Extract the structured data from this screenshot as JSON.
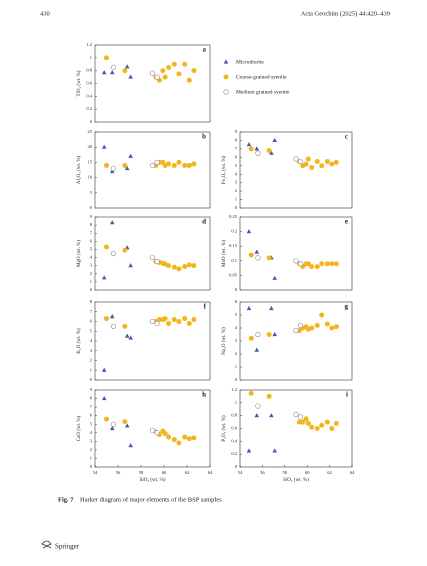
{
  "header": {
    "page": "430",
    "journal": "Acta Geochim (2025) 44:420–439"
  },
  "chart_data": [
    {
      "type": "scatter",
      "panel": "a",
      "ylabel": "TiO₂ (wt. %)",
      "xlim": [
        54,
        64
      ],
      "ylim": [
        0,
        1.2
      ],
      "yticks": [
        0,
        0.2,
        0.4,
        0.6,
        0.8,
        1,
        1.2
      ],
      "series": [
        {
          "name": "Microdiorite",
          "color": "#3f5fa8",
          "marker": "triangle",
          "x": [
            54.8,
            55.5,
            56.8,
            57.1
          ],
          "values": [
            0.77,
            0.77,
            0.86,
            0.7
          ]
        },
        {
          "name": "Coarse-grained syenite",
          "color": "#f2b51c",
          "marker": "circle",
          "x": [
            55,
            56.6,
            59.3,
            59.6,
            59.9,
            60.1,
            60.4,
            60.9,
            61.3,
            61.8,
            62.2,
            62.6
          ],
          "values": [
            1.0,
            0.8,
            0.7,
            0.65,
            0.8,
            0.7,
            0.85,
            0.9,
            0.75,
            0.9,
            0.65,
            0.8
          ]
        },
        {
          "name": "Medium grained syenite",
          "color": "#8a8a8a",
          "marker": "open-circle",
          "x": [
            55.6,
            59.0,
            59.4
          ],
          "values": [
            0.85,
            0.76,
            0.7
          ]
        }
      ]
    },
    {
      "type": "scatter",
      "panel": "b",
      "ylabel": "Al₂O₃ (wt. %)",
      "xlim": [
        54,
        64
      ],
      "ylim": [
        0,
        25
      ],
      "yticks": [
        0,
        5,
        10,
        15,
        20,
        25
      ],
      "series": [
        {
          "color": "#3f5fa8",
          "marker": "triangle",
          "x": [
            54.8,
            55.5,
            56.8,
            57.1
          ],
          "values": [
            20,
            12,
            13,
            17
          ]
        },
        {
          "color": "#f2b51c",
          "marker": "circle",
          "x": [
            55,
            56.6,
            59.3,
            59.6,
            59.9,
            60.1,
            60.4,
            60.9,
            61.3,
            61.8,
            62.2,
            62.6
          ],
          "values": [
            14,
            14,
            14,
            15,
            15,
            14,
            14.5,
            14,
            15,
            14,
            14,
            14.5
          ]
        },
        {
          "color": "#8a8a8a",
          "marker": "open-circle",
          "x": [
            55.6,
            59.0,
            59.4
          ],
          "values": [
            13,
            14,
            15
          ]
        }
      ]
    },
    {
      "type": "scatter",
      "panel": "c",
      "ylabel": "Fe₂O₃ (wt. %)",
      "xlim": [
        54,
        64
      ],
      "ylim": [
        0,
        9
      ],
      "yticks": [
        0,
        1,
        2,
        3,
        4,
        5,
        6,
        7,
        8,
        9
      ],
      "series": [
        {
          "color": "#3f5fa8",
          "marker": "triangle",
          "x": [
            54.8,
            55.5,
            56.8,
            57.1
          ],
          "values": [
            7.5,
            7,
            6.5,
            8
          ]
        },
        {
          "color": "#f2b51c",
          "marker": "circle",
          "x": [
            55,
            56.6,
            59.3,
            59.6,
            59.9,
            60.1,
            60.4,
            60.9,
            61.3,
            61.8,
            62.2,
            62.6
          ],
          "values": [
            7,
            6.8,
            5.5,
            5,
            5.2,
            5.8,
            4.8,
            5.5,
            5,
            5.5,
            5.2,
            5.4
          ]
        },
        {
          "color": "#8a8a8a",
          "marker": "open-circle",
          "x": [
            55.6,
            59.0,
            59.4
          ],
          "values": [
            6.5,
            5.8,
            5.5
          ]
        }
      ]
    },
    {
      "type": "scatter",
      "panel": "d",
      "ylabel": "MgO (wt. %)",
      "xlim": [
        54,
        64
      ],
      "ylim": [
        0,
        9
      ],
      "yticks": [
        0,
        1,
        2,
        3,
        4,
        5,
        6,
        7,
        8,
        9
      ],
      "series": [
        {
          "color": "#3f5fa8",
          "marker": "triangle",
          "x": [
            54.8,
            55.5,
            56.8,
            57.1
          ],
          "values": [
            1.5,
            8.3,
            5.2,
            3
          ]
        },
        {
          "color": "#f2b51c",
          "marker": "circle",
          "x": [
            55,
            56.6,
            59.3,
            59.6,
            59.9,
            60.1,
            60.4,
            60.9,
            61.3,
            61.8,
            62.2,
            62.6
          ],
          "values": [
            5.3,
            4.9,
            3.5,
            3.4,
            3.3,
            3.2,
            3.0,
            2.8,
            2.6,
            2.9,
            3.1,
            3.0
          ]
        },
        {
          "color": "#8a8a8a",
          "marker": "open-circle",
          "x": [
            55.6,
            59.0,
            59.4
          ],
          "values": [
            4.5,
            4,
            3.5
          ]
        }
      ]
    },
    {
      "type": "scatter",
      "panel": "e",
      "ylabel": "MnO (wt. %)",
      "xlim": [
        54,
        64
      ],
      "ylim": [
        0,
        0.25
      ],
      "yticks": [
        0,
        0.05,
        0.1,
        0.15,
        0.2,
        0.25
      ],
      "series": [
        {
          "color": "#3f5fa8",
          "marker": "triangle",
          "x": [
            54.8,
            55.5,
            56.8,
            57.1
          ],
          "values": [
            0.2,
            0.13,
            0.11,
            0.04
          ]
        },
        {
          "color": "#f2b51c",
          "marker": "circle",
          "x": [
            55,
            56.6,
            59.3,
            59.6,
            59.9,
            60.1,
            60.4,
            60.9,
            61.3,
            61.8,
            62.2,
            62.6
          ],
          "values": [
            0.12,
            0.11,
            0.09,
            0.08,
            0.09,
            0.09,
            0.08,
            0.08,
            0.09,
            0.09,
            0.09,
            0.09
          ]
        },
        {
          "color": "#8a8a8a",
          "marker": "open-circle",
          "x": [
            55.6,
            59.0,
            59.4
          ],
          "values": [
            0.11,
            0.1,
            0.09
          ]
        }
      ]
    },
    {
      "type": "scatter",
      "panel": "f",
      "ylabel": "K₂O (wt. %)",
      "xlim": [
        54,
        64
      ],
      "ylim": [
        0,
        8
      ],
      "yticks": [
        0,
        1,
        2,
        3,
        4,
        5,
        6,
        7,
        8
      ],
      "series": [
        {
          "color": "#3f5fa8",
          "marker": "triangle",
          "x": [
            54.8,
            55.5,
            56.8,
            57.1
          ],
          "values": [
            1,
            6.5,
            4.5,
            4.3
          ]
        },
        {
          "color": "#f2b51c",
          "marker": "circle",
          "x": [
            55,
            56.6,
            59.3,
            59.6,
            59.9,
            60.1,
            60.4,
            60.9,
            61.3,
            61.8,
            62.2,
            62.6
          ],
          "values": [
            6.3,
            5.5,
            6.0,
            6.2,
            6.2,
            6.3,
            5.8,
            6.2,
            6.0,
            6.3,
            5.8,
            6.2
          ]
        },
        {
          "color": "#8a8a8a",
          "marker": "open-circle",
          "x": [
            55.6,
            59.0,
            59.4
          ],
          "values": [
            5.5,
            6,
            5.8
          ]
        }
      ]
    },
    {
      "type": "scatter",
      "panel": "g",
      "ylabel": "Na₂O (wt. %)",
      "xlim": [
        54,
        64
      ],
      "ylim": [
        0,
        6
      ],
      "yticks": [
        0,
        1,
        2,
        3,
        4,
        5,
        6
      ],
      "series": [
        {
          "color": "#3f5fa8",
          "marker": "triangle",
          "x": [
            54.8,
            55.5,
            56.8,
            57.1
          ],
          "values": [
            5.5,
            2.3,
            5.5,
            3.5
          ]
        },
        {
          "color": "#f2b51c",
          "marker": "circle",
          "x": [
            55,
            56.6,
            59.3,
            59.6,
            59.9,
            60.1,
            60.4,
            60.9,
            61.3,
            61.8,
            62.2,
            62.6
          ],
          "values": [
            3.2,
            3.5,
            3.8,
            4.0,
            4.1,
            3.9,
            4.0,
            4.2,
            5.0,
            4.3,
            4.0,
            4.1
          ]
        },
        {
          "color": "#8a8a8a",
          "marker": "open-circle",
          "x": [
            55.6,
            59.0,
            59.4
          ],
          "values": [
            3.5,
            3.8,
            4.2
          ]
        }
      ]
    },
    {
      "type": "scatter",
      "panel": "h",
      "ylabel": "CaO (wt. %)",
      "xlabel": "SiO₂ (wt. %)",
      "xlim": [
        54,
        64
      ],
      "xticks": [
        54,
        56,
        58,
        60,
        62,
        64
      ],
      "ylim": [
        0,
        9
      ],
      "yticks": [
        0,
        1,
        2,
        3,
        4,
        5,
        6,
        7,
        8,
        9
      ],
      "series": [
        {
          "color": "#3f5fa8",
          "marker": "triangle",
          "x": [
            54.8,
            55.5,
            56.8,
            57.1
          ],
          "values": [
            8,
            4.5,
            4.8,
            2.5
          ]
        },
        {
          "color": "#f2b51c",
          "marker": "circle",
          "x": [
            55,
            56.6,
            59.3,
            59.6,
            59.9,
            60.1,
            60.4,
            60.9,
            61.3,
            61.8,
            62.2,
            62.6
          ],
          "values": [
            5.6,
            5.3,
            4.1,
            3.8,
            4.2,
            3.9,
            3.5,
            3.2,
            2.8,
            3.5,
            3.3,
            3.4
          ]
        },
        {
          "color": "#8a8a8a",
          "marker": "open-circle",
          "x": [
            55.6,
            59.0,
            59.4
          ],
          "values": [
            5,
            4.3,
            4
          ]
        }
      ]
    },
    {
      "type": "scatter",
      "panel": "i",
      "ylabel": "P₂O₅ (wt. %)",
      "xlabel": "SiO₂ (wt. %)",
      "xlim": [
        54,
        64
      ],
      "xticks": [
        54,
        56,
        58,
        60,
        62,
        64
      ],
      "ylim": [
        0,
        1.2
      ],
      "yticks": [
        0,
        0.2,
        0.4,
        0.6,
        0.8,
        1,
        1.2
      ],
      "series": [
        {
          "color": "#3f5fa8",
          "marker": "triangle",
          "x": [
            54.8,
            55.5,
            56.8,
            57.1
          ],
          "values": [
            0.25,
            0.8,
            0.8,
            0.25
          ]
        },
        {
          "color": "#f2b51c",
          "marker": "circle",
          "x": [
            55,
            56.6,
            59.3,
            59.6,
            59.9,
            60.1,
            60.4,
            60.9,
            61.3,
            61.8,
            62.2,
            62.6
          ],
          "values": [
            1.15,
            1.1,
            0.7,
            0.7,
            0.75,
            0.68,
            0.62,
            0.6,
            0.65,
            0.7,
            0.6,
            0.68
          ]
        },
        {
          "color": "#8a8a8a",
          "marker": "open-circle",
          "x": [
            55.6,
            59.0,
            59.4
          ],
          "values": [
            0.95,
            0.82,
            0.78
          ]
        }
      ]
    }
  ],
  "caption": {
    "label": "Fig. 7",
    "text": "Harker diagram of major elements of the BSP samples"
  },
  "footer": {
    "publisher": "Springer"
  }
}
